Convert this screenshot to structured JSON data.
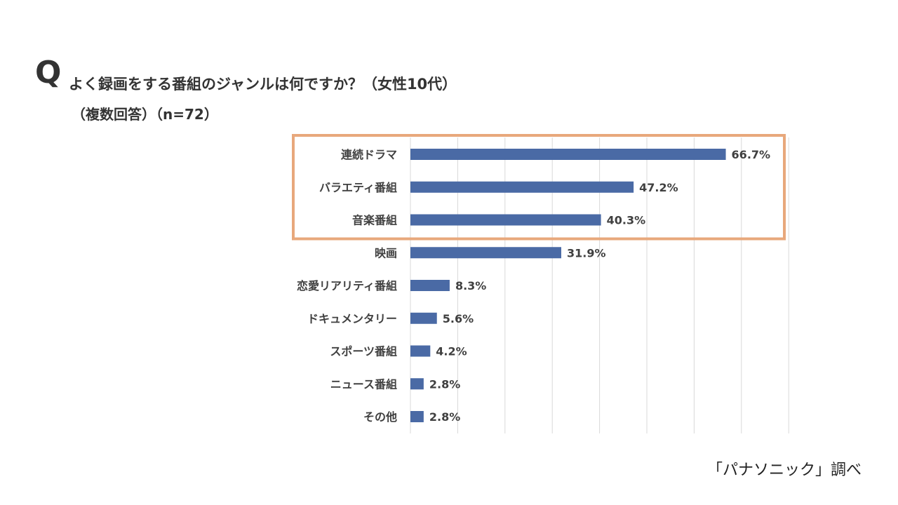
{
  "question": {
    "mark": "Q",
    "title": "よく録画をする番組のジャンルは何ですか？（女性10代）",
    "subtitle": "（複数回答）（n=72）"
  },
  "source": "「パナソニック」調べ",
  "colors": {
    "bar": "#4a6aa5",
    "highlight": "#e8a87c",
    "grid": "#d9d9d9"
  },
  "chart_data": {
    "type": "bar",
    "orientation": "horizontal",
    "title": "よく録画をする番組のジャンルは何ですか？（女性10代）",
    "categories": [
      "連続ドラマ",
      "バラエティ番組",
      "音楽番組",
      "映画",
      "恋愛リアリティ番組",
      "ドキュメンタリー",
      "スポーツ番組",
      "ニュース番組",
      "その他"
    ],
    "values": [
      66.7,
      47.2,
      40.3,
      31.9,
      8.3,
      5.6,
      4.2,
      2.8,
      2.8
    ],
    "value_labels": [
      "66.7%",
      "47.2%",
      "40.3%",
      "31.9%",
      "8.3%",
      "5.6%",
      "4.2%",
      "2.8%",
      "2.8%"
    ],
    "xlim": [
      0,
      80
    ],
    "grid_step": 10,
    "grid": true,
    "highlighted": [
      "連続ドラマ",
      "バラエティ番組",
      "音楽番組"
    ]
  }
}
